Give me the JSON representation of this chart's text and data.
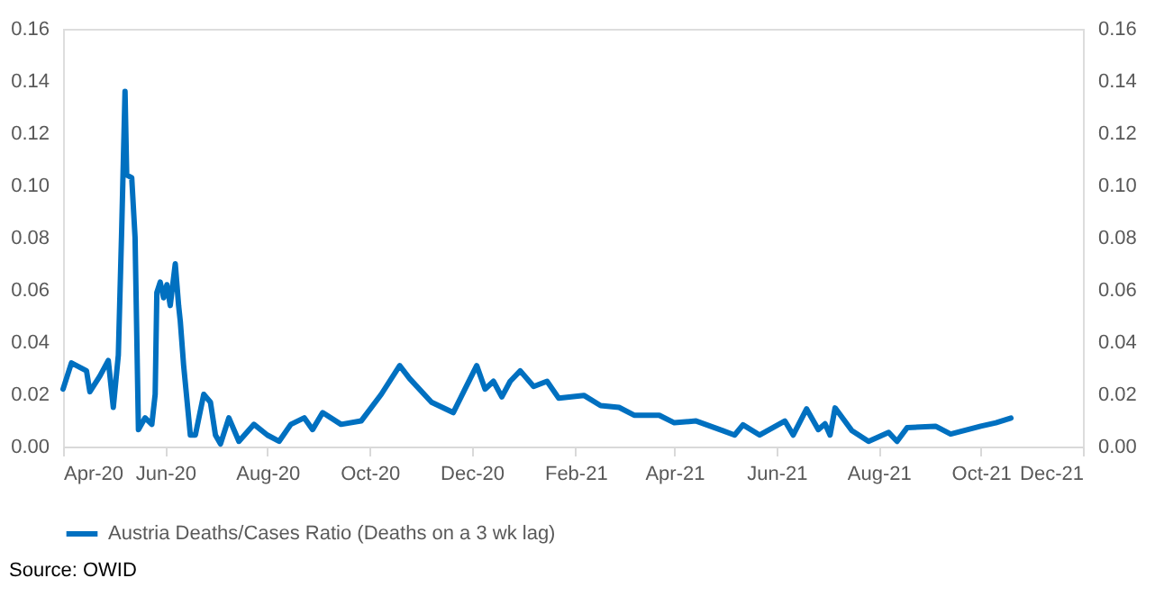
{
  "chart_data": {
    "type": "line",
    "x": [
      "2020-04-01",
      "2020-04-06",
      "2020-04-15",
      "2020-04-17",
      "2020-04-23",
      "2020-04-28",
      "2020-05-01",
      "2020-05-04",
      "2020-05-06",
      "2020-05-08",
      "2020-05-09",
      "2020-05-12",
      "2020-05-14",
      "2020-05-16",
      "2020-05-20",
      "2020-05-24",
      "2020-05-26",
      "2020-05-27",
      "2020-05-29",
      "2020-05-31",
      "2020-06-02",
      "2020-06-04",
      "2020-06-07",
      "2020-06-09",
      "2020-06-10",
      "2020-06-12",
      "2020-06-16",
      "2020-06-19",
      "2020-06-24",
      "2020-06-28",
      "2020-07-01",
      "2020-07-04",
      "2020-07-09",
      "2020-07-15",
      "2020-07-24",
      "2020-08-01",
      "2020-08-08",
      "2020-08-15",
      "2020-08-23",
      "2020-08-28",
      "2020-09-03",
      "2020-09-14",
      "2020-09-26",
      "2020-10-08",
      "2020-10-19",
      "2020-10-25",
      "2020-11-07",
      "2020-11-20",
      "2020-11-27",
      "2020-12-04",
      "2020-12-09",
      "2020-12-14",
      "2020-12-19",
      "2020-12-24",
      "2020-12-30",
      "2021-01-07",
      "2021-01-15",
      "2021-01-22",
      "2021-02-06",
      "2021-02-16",
      "2021-02-27",
      "2021-03-08",
      "2021-03-23",
      "2021-04-01",
      "2021-04-14",
      "2021-04-30",
      "2021-05-07",
      "2021-05-12",
      "2021-05-22",
      "2021-06-06",
      "2021-06-11",
      "2021-06-19",
      "2021-06-26",
      "2021-06-30",
      "2021-07-03",
      "2021-07-06",
      "2021-07-16",
      "2021-07-26",
      "2021-08-07",
      "2021-08-12",
      "2021-08-18",
      "2021-09-04",
      "2021-09-13",
      "2021-10-01",
      "2021-10-10",
      "2021-10-19"
    ],
    "series": [
      {
        "name": "Austria Deaths/Cases Ratio (Deaths on a 3 wk lag)",
        "color": "#0070c0",
        "values": [
          0.022,
          0.032,
          0.029,
          0.021,
          0.027,
          0.033,
          0.015,
          0.035,
          0.083,
          0.136,
          0.104,
          0.103,
          0.08,
          0.0065,
          0.011,
          0.0085,
          0.02,
          0.059,
          0.063,
          0.057,
          0.062,
          0.054,
          0.07,
          0.054,
          0.048,
          0.031,
          0.0044,
          0.0044,
          0.02,
          0.017,
          0.0044,
          0.001,
          0.011,
          0.002,
          0.0085,
          0.0044,
          0.002,
          0.0085,
          0.011,
          0.0065,
          0.013,
          0.0085,
          0.0098,
          0.02,
          0.031,
          0.026,
          0.017,
          0.013,
          0.022,
          0.031,
          0.022,
          0.025,
          0.019,
          0.025,
          0.029,
          0.023,
          0.025,
          0.0185,
          0.0196,
          0.0157,
          0.015,
          0.012,
          0.012,
          0.0091,
          0.0098,
          0.0061,
          0.0044,
          0.0083,
          0.0044,
          0.0098,
          0.0044,
          0.0144,
          0.0065,
          0.0087,
          0.0044,
          0.0148,
          0.0061,
          0.002,
          0.0054,
          0.002,
          0.0072,
          0.0078,
          0.0048,
          0.0078,
          0.0091,
          0.0109
        ]
      }
    ],
    "xlim": [
      "2020-04-01",
      "2021-12-01"
    ],
    "xticks": [
      {
        "value": "2020-04-01",
        "label": "Apr-20"
      },
      {
        "value": "2020-06-01",
        "label": "Jun-20"
      },
      {
        "value": "2020-08-01",
        "label": "Aug-20"
      },
      {
        "value": "2020-10-01",
        "label": "Oct-20"
      },
      {
        "value": "2020-12-01",
        "label": "Dec-20"
      },
      {
        "value": "2021-02-01",
        "label": "Feb-21"
      },
      {
        "value": "2021-04-01",
        "label": "Apr-21"
      },
      {
        "value": "2021-06-01",
        "label": "Jun-21"
      },
      {
        "value": "2021-08-01",
        "label": "Aug-21"
      },
      {
        "value": "2021-10-01",
        "label": "Oct-21"
      },
      {
        "value": "2021-12-01",
        "label": "Dec-21"
      }
    ],
    "ylim": [
      0,
      0.16
    ],
    "yticks": [
      {
        "value": 0,
        "label": "0.00"
      },
      {
        "value": 0.02,
        "label": "0.02"
      },
      {
        "value": 0.04,
        "label": "0.04"
      },
      {
        "value": 0.06,
        "label": "0.06"
      },
      {
        "value": 0.08,
        "label": "0.08"
      },
      {
        "value": 0.1,
        "label": "0.10"
      },
      {
        "value": 0.12,
        "label": "0.12"
      },
      {
        "value": 0.14,
        "label": "0.14"
      },
      {
        "value": 0.16,
        "label": "0.16"
      }
    ],
    "y2lim": [
      0,
      0.16
    ],
    "y2ticks": [
      {
        "value": 0,
        "label": "0.00"
      },
      {
        "value": 0.02,
        "label": "0.02"
      },
      {
        "value": 0.04,
        "label": "0.04"
      },
      {
        "value": 0.06,
        "label": "0.06"
      },
      {
        "value": 0.08,
        "label": "0.08"
      },
      {
        "value": 0.1,
        "label": "0.10"
      },
      {
        "value": 0.12,
        "label": "0.12"
      },
      {
        "value": 0.14,
        "label": "0.14"
      },
      {
        "value": 0.16,
        "label": "0.16"
      }
    ],
    "grid": false,
    "legend": "bottom",
    "marker": "none",
    "line_style": "solid",
    "annotations": [
      "Source: OWID"
    ]
  }
}
